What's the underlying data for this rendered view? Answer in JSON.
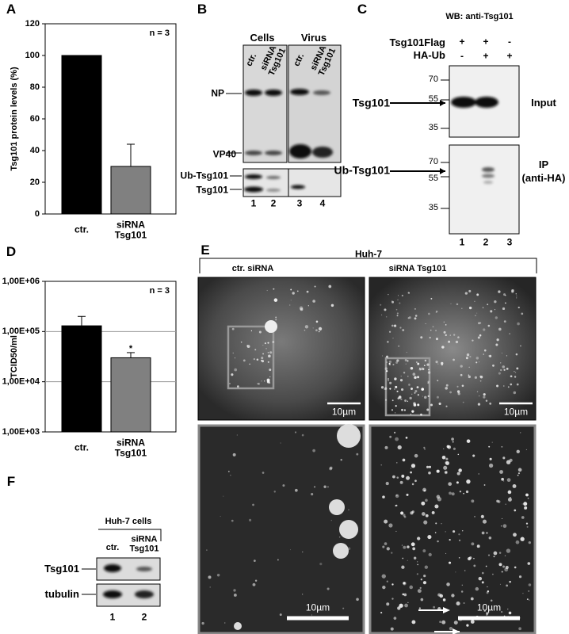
{
  "chart_data": [
    {
      "type": "bar",
      "y_label": "Tsg101 protein levels (%)",
      "annotation": "n = 3",
      "categories": [
        "ctr.",
        "siRNA Tsg101"
      ],
      "values": [
        100,
        30
      ],
      "errors": [
        null,
        14
      ],
      "colors": [
        "#000000",
        "#808080"
      ],
      "ylim": [
        0,
        120
      ],
      "yticks": [
        0,
        20,
        40,
        60,
        80,
        100,
        120
      ],
      "log_scale": false,
      "grid": false
    },
    {
      "type": "bar",
      "y_label": "TCID50/ml",
      "annotation": "n = 3",
      "categories": [
        "ctr.",
        "siRNA Tsg101"
      ],
      "values": [
        130000,
        30000
      ],
      "errors": [
        70000,
        8000
      ],
      "value_annotations": [
        null,
        "*"
      ],
      "colors": [
        "#000000",
        "#808080"
      ],
      "ylim": [
        1000,
        1000000
      ],
      "yticks": [
        {
          "value": 1000,
          "label": "1,00E+03"
        },
        {
          "value": 10000,
          "label": "1,00E+04"
        },
        {
          "value": 100000,
          "label": "1,00E+05"
        },
        {
          "value": 1000000,
          "label": "1,00E+06"
        }
      ],
      "log_scale": true,
      "grid": true
    }
  ],
  "panel_labels": [
    "A",
    "B",
    "C",
    "D",
    "E",
    "F"
  ],
  "panel_b": {
    "groups": [
      "Cells",
      "Virus"
    ],
    "lanes": [
      "ctr.",
      "siRNA Tsg101",
      "ctr.",
      "siRNA Tsg101"
    ],
    "bands": [
      "NP",
      "VP40",
      "Ub-Tsg101",
      "Tsg101"
    ],
    "lane_numbers": [
      1,
      2,
      3,
      4
    ]
  },
  "panel_c": {
    "title": "WB: anti-Tsg101",
    "rows": [
      {
        "label": "Tsg101Flag",
        "signs": [
          "+",
          "+",
          "-"
        ]
      },
      {
        "label": "HA-Ub",
        "signs": [
          "-",
          "+",
          "+"
        ]
      }
    ],
    "markers_input": [
      70,
      55,
      35
    ],
    "markers_ip": [
      70,
      55,
      35
    ],
    "bands": [
      "Tsg101",
      "Ub-Tsg101"
    ],
    "blots": [
      "Input",
      "IP",
      "(anti-HA)"
    ],
    "lane_numbers": [
      1,
      2,
      3
    ]
  },
  "panel_e": {
    "title": "Huh-7",
    "columns": [
      "ctr. siRNA",
      "siRNA Tsg101"
    ],
    "scale_bars": [
      "10µm",
      "10µm",
      "10µm",
      "10µm"
    ]
  },
  "panel_f": {
    "title": "Huh-7 cells",
    "lanes": [
      "ctr.",
      "siRNA Tsg101"
    ],
    "bands": [
      "Tsg101",
      "tubulin"
    ],
    "lane_numbers": [
      1,
      2
    ]
  }
}
